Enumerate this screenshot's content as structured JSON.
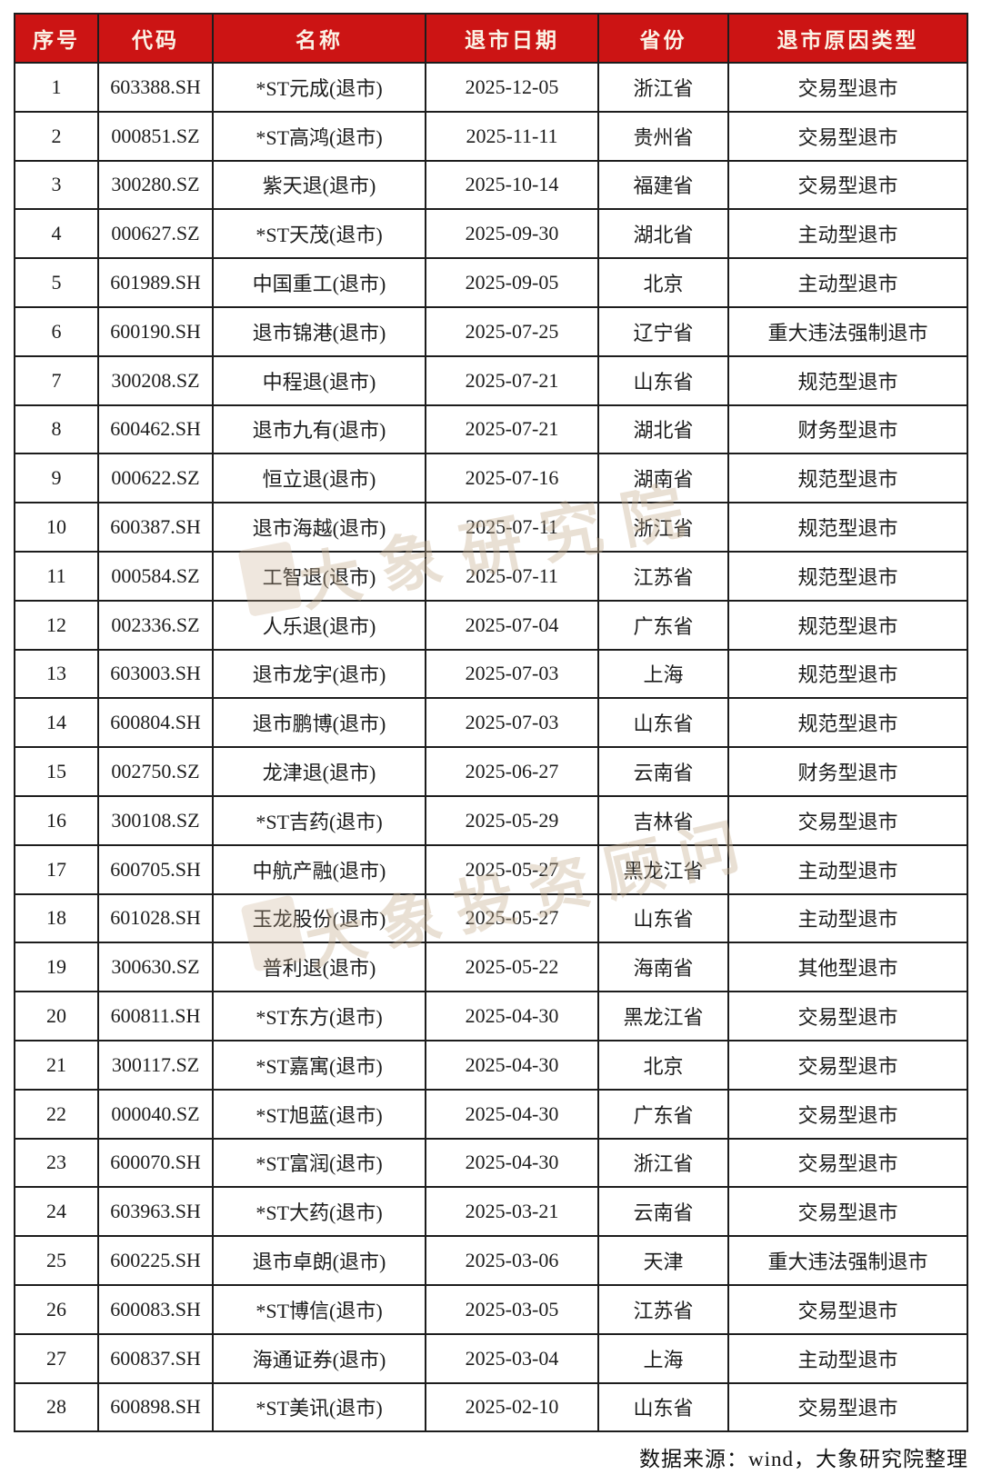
{
  "table": {
    "headers": [
      "序号",
      "代码",
      "名称",
      "退市日期",
      "省份",
      "退市原因类型"
    ],
    "rows": [
      {
        "no": "1",
        "code": "603388.SH",
        "name": "*ST元成(退市)",
        "date": "2025-12-05",
        "province": "浙江省",
        "reason": "交易型退市"
      },
      {
        "no": "2",
        "code": "000851.SZ",
        "name": "*ST高鸿(退市)",
        "date": "2025-11-11",
        "province": "贵州省",
        "reason": "交易型退市"
      },
      {
        "no": "3",
        "code": "300280.SZ",
        "name": "紫天退(退市)",
        "date": "2025-10-14",
        "province": "福建省",
        "reason": "交易型退市"
      },
      {
        "no": "4",
        "code": "000627.SZ",
        "name": "*ST天茂(退市)",
        "date": "2025-09-30",
        "province": "湖北省",
        "reason": "主动型退市"
      },
      {
        "no": "5",
        "code": "601989.SH",
        "name": "中国重工(退市)",
        "date": "2025-09-05",
        "province": "北京",
        "reason": "主动型退市"
      },
      {
        "no": "6",
        "code": "600190.SH",
        "name": "退市锦港(退市)",
        "date": "2025-07-25",
        "province": "辽宁省",
        "reason": "重大违法强制退市"
      },
      {
        "no": "7",
        "code": "300208.SZ",
        "name": "中程退(退市)",
        "date": "2025-07-21",
        "province": "山东省",
        "reason": "规范型退市"
      },
      {
        "no": "8",
        "code": "600462.SH",
        "name": "退市九有(退市)",
        "date": "2025-07-21",
        "province": "湖北省",
        "reason": "财务型退市"
      },
      {
        "no": "9",
        "code": "000622.SZ",
        "name": "恒立退(退市)",
        "date": "2025-07-16",
        "province": "湖南省",
        "reason": "规范型退市"
      },
      {
        "no": "10",
        "code": "600387.SH",
        "name": "退市海越(退市)",
        "date": "2025-07-11",
        "province": "浙江省",
        "reason": "规范型退市"
      },
      {
        "no": "11",
        "code": "000584.SZ",
        "name": "工智退(退市)",
        "date": "2025-07-11",
        "province": "江苏省",
        "reason": "规范型退市"
      },
      {
        "no": "12",
        "code": "002336.SZ",
        "name": "人乐退(退市)",
        "date": "2025-07-04",
        "province": "广东省",
        "reason": "规范型退市"
      },
      {
        "no": "13",
        "code": "603003.SH",
        "name": "退市龙宇(退市)",
        "date": "2025-07-03",
        "province": "上海",
        "reason": "规范型退市"
      },
      {
        "no": "14",
        "code": "600804.SH",
        "name": "退市鹏博(退市)",
        "date": "2025-07-03",
        "province": "山东省",
        "reason": "规范型退市"
      },
      {
        "no": "15",
        "code": "002750.SZ",
        "name": "龙津退(退市)",
        "date": "2025-06-27",
        "province": "云南省",
        "reason": "财务型退市"
      },
      {
        "no": "16",
        "code": "300108.SZ",
        "name": "*ST吉药(退市)",
        "date": "2025-05-29",
        "province": "吉林省",
        "reason": "交易型退市"
      },
      {
        "no": "17",
        "code": "600705.SH",
        "name": "中航产融(退市)",
        "date": "2025-05-27",
        "province": "黑龙江省",
        "reason": "主动型退市"
      },
      {
        "no": "18",
        "code": "601028.SH",
        "name": "玉龙股份(退市)",
        "date": "2025-05-27",
        "province": "山东省",
        "reason": "主动型退市"
      },
      {
        "no": "19",
        "code": "300630.SZ",
        "name": "普利退(退市)",
        "date": "2025-05-22",
        "province": "海南省",
        "reason": "其他型退市"
      },
      {
        "no": "20",
        "code": "600811.SH",
        "name": "*ST东方(退市)",
        "date": "2025-04-30",
        "province": "黑龙江省",
        "reason": "交易型退市"
      },
      {
        "no": "21",
        "code": "300117.SZ",
        "name": "*ST嘉寓(退市)",
        "date": "2025-04-30",
        "province": "北京",
        "reason": "交易型退市"
      },
      {
        "no": "22",
        "code": "000040.SZ",
        "name": "*ST旭蓝(退市)",
        "date": "2025-04-30",
        "province": "广东省",
        "reason": "交易型退市"
      },
      {
        "no": "23",
        "code": "600070.SH",
        "name": "*ST富润(退市)",
        "date": "2025-04-30",
        "province": "浙江省",
        "reason": "交易型退市"
      },
      {
        "no": "24",
        "code": "603963.SH",
        "name": "*ST大药(退市)",
        "date": "2025-03-21",
        "province": "云南省",
        "reason": "交易型退市"
      },
      {
        "no": "25",
        "code": "600225.SH",
        "name": "退市卓朗(退市)",
        "date": "2025-03-06",
        "province": "天津",
        "reason": "重大违法强制退市"
      },
      {
        "no": "26",
        "code": "600083.SH",
        "name": "*ST博信(退市)",
        "date": "2025-03-05",
        "province": "江苏省",
        "reason": "交易型退市"
      },
      {
        "no": "27",
        "code": "600837.SH",
        "name": "海通证券(退市)",
        "date": "2025-03-04",
        "province": "上海",
        "reason": "主动型退市"
      },
      {
        "no": "28",
        "code": "600898.SH",
        "name": "*ST美讯(退市)",
        "date": "2025-02-10",
        "province": "山东省",
        "reason": "交易型退市"
      }
    ]
  },
  "watermarks": [
    "大象研究院",
    "大象投资顾问"
  ],
  "footer": {
    "source_note": "数据来源：wind，大象研究院整理"
  },
  "colors": {
    "header_bg": "#cc1414",
    "header_text": "#fbf3e6",
    "border": "#1d1d1d",
    "body_text": "#1c1c1c",
    "watermark": "#c9b193"
  }
}
